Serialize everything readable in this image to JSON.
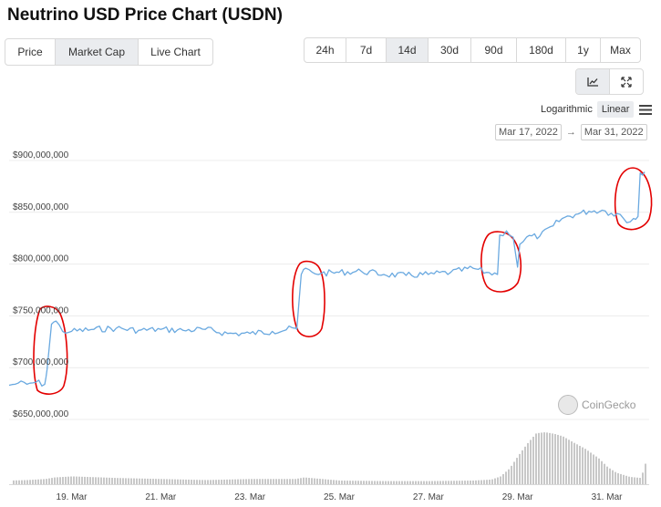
{
  "title": "Neutrino USD Price Chart (USDN)",
  "view_tabs": [
    "Price",
    "Market Cap",
    "Live Chart"
  ],
  "view_active": 1,
  "ranges": [
    "24h",
    "7d",
    "14d",
    "30d",
    "90d",
    "180d",
    "1y",
    "Max"
  ],
  "range_active": 2,
  "scale": {
    "log_label": "Logarithmic",
    "linear_label": "Linear",
    "active": "linear"
  },
  "date_range": {
    "from": "Mar 17, 2022",
    "arrow": "→",
    "to": "Mar 31, 2022"
  },
  "watermark": "CoinGecko",
  "icons": [
    "line-chart-icon",
    "expand-icon",
    "menu-icon",
    "coingecko-logo",
    "hand-drawn-annotation-circles"
  ],
  "colors": {
    "line": "#6aa9e0",
    "volume": "#c8c8c8",
    "annotation": "#e30000",
    "active_bg": "#eaecef"
  },
  "chart_data": {
    "type": "line",
    "y_tick_labels": [
      "$900,000,000",
      "$850,000,000",
      "$800,000,000",
      "$750,000,000",
      "$700,000,000",
      "$650,000,000"
    ],
    "y_ticks": [
      900000000,
      850000000,
      800000000,
      750000000,
      700000000,
      650000000
    ],
    "ylim": [
      640000000,
      910000000
    ],
    "x_tick_labels": [
      "19. Mar",
      "21. Mar",
      "23. Mar",
      "25. Mar",
      "27. Mar",
      "29. Mar",
      "31. Mar"
    ],
    "x_ticks": [
      19,
      21,
      23,
      25,
      27,
      29,
      31
    ],
    "xlim": [
      17.6,
      31.95
    ],
    "x_unit": "day of March 2022",
    "grid": "horizontal",
    "series": [
      {
        "x": [
          17.6,
          17.8,
          18.0,
          18.2,
          18.4,
          18.45,
          18.55,
          18.65,
          18.8,
          19.0,
          19.5,
          20.0,
          20.5,
          21.0,
          21.5,
          22.0,
          22.5,
          23.0,
          23.5,
          24.0,
          24.05,
          24.15,
          24.25,
          24.4,
          24.6,
          25.0,
          25.5,
          26.0,
          26.5,
          27.0,
          27.5,
          28.0,
          28.3,
          28.55,
          28.6,
          28.75,
          28.9,
          29.0,
          29.05,
          29.2,
          29.5,
          29.8,
          30.0,
          30.3,
          30.6,
          30.9,
          31.1,
          31.3,
          31.45,
          31.6,
          31.7,
          31.75,
          31.85
        ],
        "y": [
          683000000,
          685000000,
          684000000,
          686000000,
          684000000,
          698000000,
          742000000,
          745000000,
          735000000,
          735000000,
          737000000,
          738000000,
          736000000,
          737000000,
          736000000,
          737000000,
          733000000,
          733000000,
          735000000,
          738000000,
          737000000,
          790000000,
          796000000,
          792000000,
          791000000,
          792000000,
          793000000,
          790000000,
          789000000,
          790000000,
          792000000,
          796000000,
          792000000,
          790000000,
          828000000,
          832000000,
          826000000,
          797000000,
          819000000,
          826000000,
          827000000,
          837000000,
          844000000,
          848000000,
          851000000,
          852000000,
          849000000,
          848000000,
          840000000,
          844000000,
          846000000,
          888000000,
          889000000
        ]
      }
    ],
    "volume": {
      "x": [
        17.6,
        18.0,
        18.4,
        18.6,
        19.0,
        20.0,
        21.0,
        22.0,
        23.0,
        24.0,
        24.2,
        25.0,
        26.0,
        27.0,
        28.0,
        28.4,
        28.6,
        28.8,
        29.0,
        29.2,
        29.4,
        29.6,
        29.8,
        30.0,
        30.2,
        30.5,
        30.8,
        31.0,
        31.2,
        31.5,
        31.75,
        31.85
      ],
      "v": [
        0.07,
        0.08,
        0.1,
        0.13,
        0.15,
        0.12,
        0.1,
        0.08,
        0.1,
        0.1,
        0.13,
        0.07,
        0.06,
        0.06,
        0.07,
        0.09,
        0.15,
        0.3,
        0.55,
        0.78,
        0.98,
        1.0,
        0.97,
        0.92,
        0.82,
        0.68,
        0.5,
        0.33,
        0.22,
        0.14,
        0.12,
        0.4
      ]
    }
  }
}
